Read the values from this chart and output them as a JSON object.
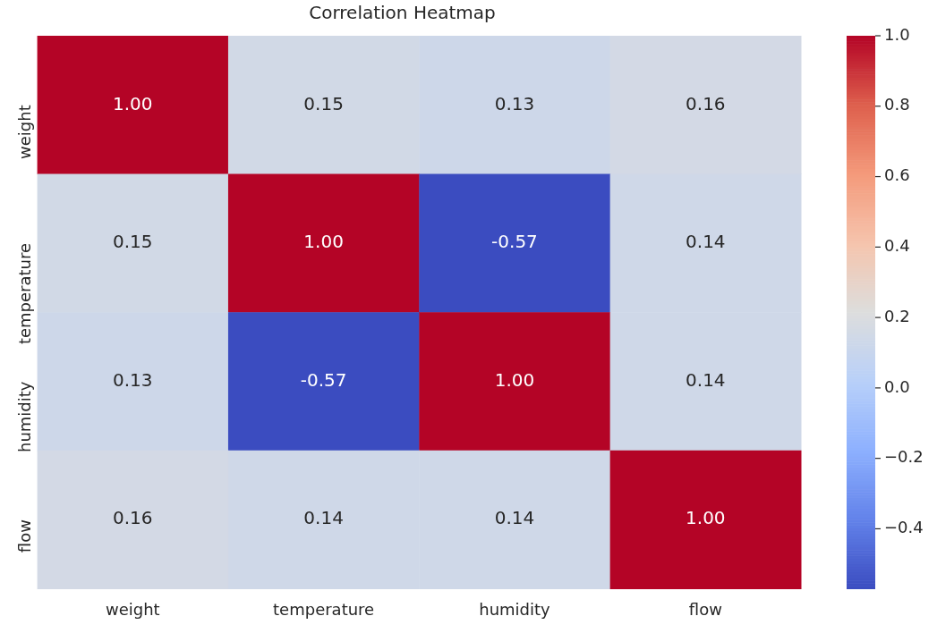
{
  "chart_data": {
    "type": "heatmap",
    "title": "Correlation Heatmap",
    "categories": [
      "weight",
      "temperature",
      "humidity",
      "flow"
    ],
    "y_categories": [
      "weight",
      "temperature",
      "humidity",
      "flow"
    ],
    "cells": [
      [
        1.0,
        0.15,
        0.13,
        0.16
      ],
      [
        0.15,
        1.0,
        -0.57,
        0.14
      ],
      [
        0.13,
        -0.57,
        1.0,
        0.14
      ],
      [
        0.16,
        0.14,
        0.14,
        1.0
      ]
    ],
    "cell_labels": [
      [
        "1.00",
        "0.15",
        "0.13",
        "0.16"
      ],
      [
        "0.15",
        "1.00",
        "-0.57",
        "0.14"
      ],
      [
        "0.13",
        "-0.57",
        "1.00",
        "0.14"
      ],
      [
        "0.16",
        "0.14",
        "0.14",
        "1.00"
      ]
    ],
    "clim": [
      -0.57,
      1.0
    ],
    "cticks": [
      {
        "value": -0.4,
        "label": "−0.4"
      },
      {
        "value": -0.2,
        "label": "−0.2"
      },
      {
        "value": 0,
        "label": "0.0"
      },
      0.2,
      0.4,
      0.6,
      0.8,
      {
        "value": 1,
        "label": "1.0"
      }
    ],
    "grid": false,
    "legend": false
  }
}
